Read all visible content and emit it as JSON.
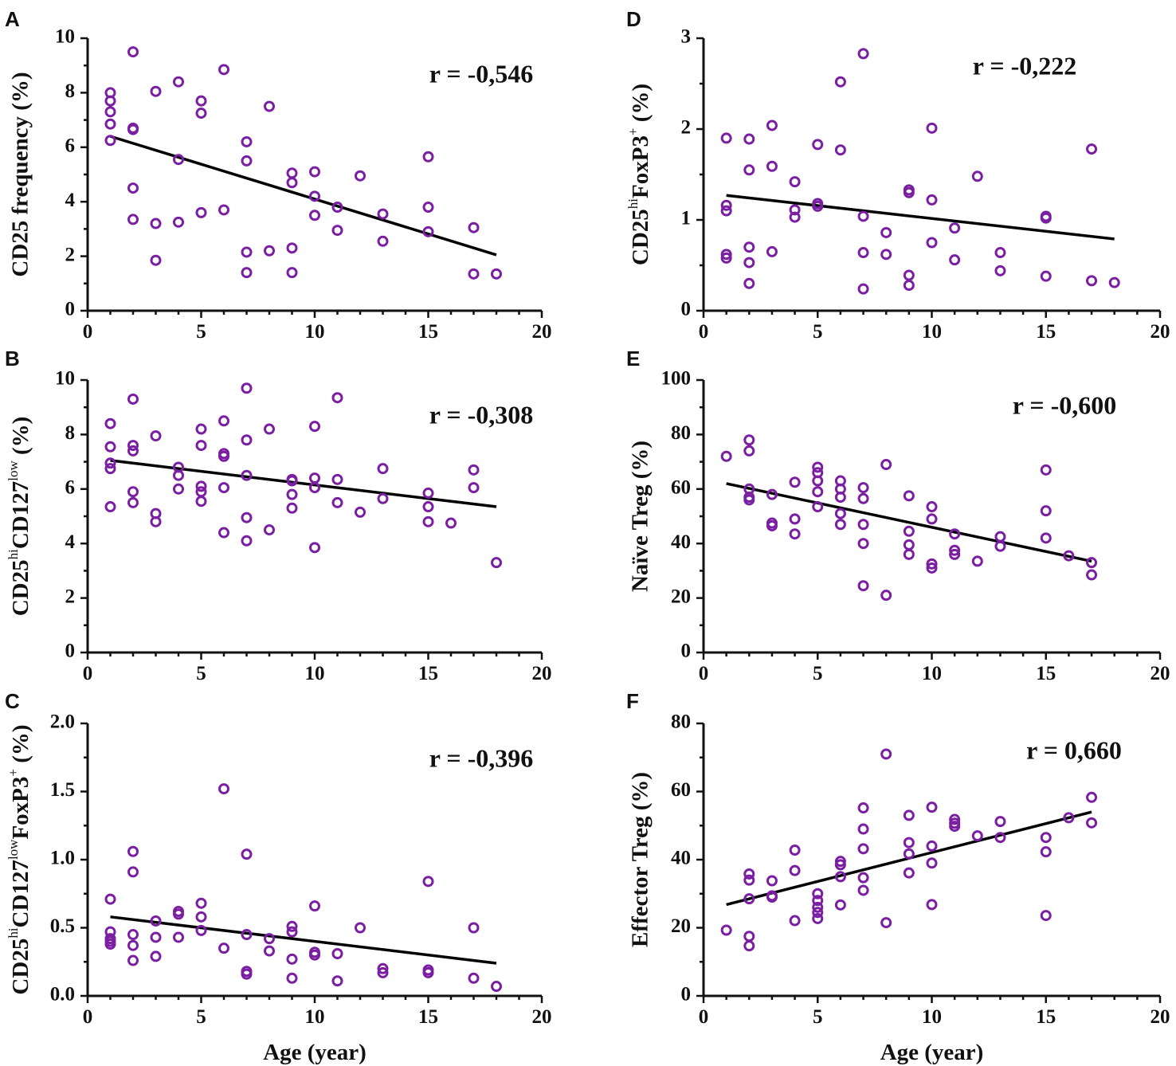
{
  "colors": {
    "points": "#7a1fa2",
    "fit_line": "#000000",
    "axes": "#111111"
  },
  "chart_data": [
    {
      "panel": "A",
      "type": "scatter",
      "ylabel": "CD25 frequency (%)",
      "xlabel": "",
      "r_label": "r = -0,546",
      "xlim": [
        0,
        20
      ],
      "ylim": [
        0,
        10
      ],
      "xticks": [
        0,
        5,
        10,
        15,
        20
      ],
      "xtick_labels": [
        "0",
        "5",
        "10",
        "15",
        "20"
      ],
      "yticks": [
        0,
        2,
        4,
        6,
        8,
        10
      ],
      "ytick_labels": [
        "0",
        "2",
        "4",
        "6",
        "8",
        "10"
      ],
      "fit": [
        [
          1,
          6.4
        ],
        [
          18,
          2.05
        ]
      ],
      "points": [
        [
          1,
          8.0
        ],
        [
          1,
          7.7
        ],
        [
          1,
          7.3
        ],
        [
          1,
          6.85
        ],
        [
          1,
          6.25
        ],
        [
          2,
          9.5
        ],
        [
          2,
          6.7
        ],
        [
          2,
          6.65
        ],
        [
          2,
          4.5
        ],
        [
          2,
          3.35
        ],
        [
          3,
          8.05
        ],
        [
          3,
          3.2
        ],
        [
          3,
          1.85
        ],
        [
          4,
          8.4
        ],
        [
          4,
          5.55
        ],
        [
          4,
          3.25
        ],
        [
          5,
          7.7
        ],
        [
          5,
          7.25
        ],
        [
          5,
          3.6
        ],
        [
          6,
          8.85
        ],
        [
          6,
          3.7
        ],
        [
          7,
          6.2
        ],
        [
          7,
          5.5
        ],
        [
          7,
          2.15
        ],
        [
          7,
          1.4
        ],
        [
          8,
          7.5
        ],
        [
          8,
          2.2
        ],
        [
          9,
          5.05
        ],
        [
          9,
          4.7
        ],
        [
          9,
          2.3
        ],
        [
          9,
          1.4
        ],
        [
          10,
          5.1
        ],
        [
          10,
          4.2
        ],
        [
          10,
          3.5
        ],
        [
          11,
          3.8
        ],
        [
          11,
          2.95
        ],
        [
          12,
          4.95
        ],
        [
          13,
          3.55
        ],
        [
          13,
          2.55
        ],
        [
          15,
          5.65
        ],
        [
          15,
          3.8
        ],
        [
          15,
          2.9
        ],
        [
          17,
          3.05
        ],
        [
          17,
          1.35
        ],
        [
          18,
          1.35
        ]
      ]
    },
    {
      "panel": "B",
      "type": "scatter",
      "ylabel": "CD25hiCD127low (%)",
      "ylabel_parts": [
        "CD25",
        "hi",
        "CD127",
        "low",
        " (%)"
      ],
      "xlabel": "",
      "r_label": "r = -0,308",
      "xlim": [
        0,
        20
      ],
      "ylim": [
        0,
        10
      ],
      "xticks": [
        0,
        5,
        10,
        15,
        20
      ],
      "xtick_labels": [
        "0",
        "5",
        "10",
        "15",
        "20"
      ],
      "yticks": [
        0,
        2,
        4,
        6,
        8,
        10
      ],
      "ytick_labels": [
        "0",
        "2",
        "4",
        "6",
        "8",
        "10"
      ],
      "fit": [
        [
          1,
          7.05
        ],
        [
          18,
          5.35
        ]
      ],
      "points": [
        [
          1,
          8.4
        ],
        [
          1,
          7.55
        ],
        [
          1,
          6.95
        ],
        [
          1,
          6.75
        ],
        [
          1,
          5.35
        ],
        [
          2,
          9.3
        ],
        [
          2,
          7.6
        ],
        [
          2,
          7.4
        ],
        [
          2,
          5.9
        ],
        [
          2,
          5.5
        ],
        [
          3,
          7.95
        ],
        [
          3,
          5.1
        ],
        [
          3,
          4.8
        ],
        [
          4,
          6.8
        ],
        [
          4,
          6.5
        ],
        [
          4,
          6.0
        ],
        [
          5,
          8.2
        ],
        [
          5,
          7.6
        ],
        [
          5,
          6.1
        ],
        [
          5,
          5.9
        ],
        [
          5,
          5.55
        ],
        [
          6,
          8.5
        ],
        [
          6,
          7.3
        ],
        [
          6,
          7.2
        ],
        [
          6,
          6.05
        ],
        [
          6,
          4.4
        ],
        [
          7,
          9.7
        ],
        [
          7,
          7.8
        ],
        [
          7,
          6.5
        ],
        [
          7,
          4.95
        ],
        [
          7,
          4.1
        ],
        [
          8,
          8.2
        ],
        [
          8,
          4.5
        ],
        [
          9,
          6.35
        ],
        [
          9,
          6.3
        ],
        [
          9,
          5.8
        ],
        [
          9,
          5.3
        ],
        [
          10,
          8.3
        ],
        [
          10,
          6.4
        ],
        [
          10,
          6.05
        ],
        [
          10,
          3.85
        ],
        [
          11,
          9.35
        ],
        [
          11,
          6.35
        ],
        [
          11,
          5.5
        ],
        [
          12,
          5.15
        ],
        [
          13,
          6.75
        ],
        [
          13,
          5.65
        ],
        [
          15,
          5.85
        ],
        [
          15,
          5.35
        ],
        [
          15,
          4.8
        ],
        [
          16,
          4.75
        ],
        [
          17,
          6.7
        ],
        [
          17,
          6.05
        ],
        [
          18,
          3.3
        ]
      ]
    },
    {
      "panel": "C",
      "type": "scatter",
      "ylabel": "CD25hiCD127lowFoxP3+ (%)",
      "ylabel_parts": [
        "CD25",
        "hi",
        "CD127",
        "low",
        "FoxP3",
        "+",
        " (%)"
      ],
      "xlabel": "Age (year)",
      "r_label": "r = -0,396",
      "xlim": [
        0,
        20
      ],
      "ylim": [
        0,
        2.0
      ],
      "xticks": [
        0,
        5,
        10,
        15,
        20
      ],
      "xtick_labels": [
        "0",
        "5",
        "10",
        "15",
        "20"
      ],
      "yticks": [
        0,
        0.5,
        1.0,
        1.5,
        2.0
      ],
      "ytick_labels": [
        "0.0",
        "0.5",
        "1.0",
        "1.5",
        "2.0"
      ],
      "fit": [
        [
          1,
          0.58
        ],
        [
          18,
          0.24
        ]
      ],
      "points": [
        [
          1,
          0.71
        ],
        [
          1,
          0.47
        ],
        [
          1,
          0.42
        ],
        [
          1,
          0.4
        ],
        [
          1,
          0.38
        ],
        [
          2,
          1.06
        ],
        [
          2,
          0.91
        ],
        [
          2,
          0.45
        ],
        [
          2,
          0.37
        ],
        [
          2,
          0.26
        ],
        [
          3,
          0.55
        ],
        [
          3,
          0.43
        ],
        [
          3,
          0.29
        ],
        [
          4,
          0.62
        ],
        [
          4,
          0.6
        ],
        [
          4,
          0.43
        ],
        [
          5,
          0.68
        ],
        [
          5,
          0.58
        ],
        [
          5,
          0.48
        ],
        [
          6,
          1.52
        ],
        [
          6,
          0.35
        ],
        [
          7,
          1.04
        ],
        [
          7,
          0.45
        ],
        [
          7,
          0.18
        ],
        [
          7,
          0.16
        ],
        [
          8,
          0.42
        ],
        [
          8,
          0.33
        ],
        [
          9,
          0.51
        ],
        [
          9,
          0.47
        ],
        [
          9,
          0.27
        ],
        [
          9,
          0.13
        ],
        [
          10,
          0.66
        ],
        [
          10,
          0.32
        ],
        [
          10,
          0.3
        ],
        [
          11,
          0.31
        ],
        [
          11,
          0.11
        ],
        [
          12,
          0.5
        ],
        [
          13,
          0.2
        ],
        [
          13,
          0.17
        ],
        [
          15,
          0.84
        ],
        [
          15,
          0.19
        ],
        [
          15,
          0.17
        ],
        [
          17,
          0.5
        ],
        [
          17,
          0.13
        ],
        [
          18,
          0.07
        ]
      ]
    },
    {
      "panel": "D",
      "type": "scatter",
      "ylabel": "CD25hiFoxP3+ (%)",
      "ylabel_parts": [
        "CD25",
        "hi",
        "FoxP3",
        "+",
        " (%)"
      ],
      "xlabel": "",
      "r_label": "r = -0,222",
      "xlim": [
        0,
        20
      ],
      "ylim": [
        0,
        3
      ],
      "xticks": [
        0,
        5,
        10,
        15,
        20
      ],
      "xtick_labels": [
        "0",
        "5",
        "10",
        "15",
        "20"
      ],
      "yticks": [
        0,
        1,
        2,
        3
      ],
      "ytick_labels": [
        "0",
        "1",
        "2",
        "3"
      ],
      "fit": [
        [
          1,
          1.27
        ],
        [
          18,
          0.79
        ]
      ],
      "points": [
        [
          1,
          1.9
        ],
        [
          1,
          1.16
        ],
        [
          1,
          1.1
        ],
        [
          1,
          0.62
        ],
        [
          1,
          0.58
        ],
        [
          2,
          1.89
        ],
        [
          2,
          1.55
        ],
        [
          2,
          0.7
        ],
        [
          2,
          0.53
        ],
        [
          2,
          0.3
        ],
        [
          3,
          2.04
        ],
        [
          3,
          1.59
        ],
        [
          3,
          0.65
        ],
        [
          4,
          1.42
        ],
        [
          4,
          1.11
        ],
        [
          4,
          1.03
        ],
        [
          5,
          1.83
        ],
        [
          5,
          1.18
        ],
        [
          5,
          1.15
        ],
        [
          6,
          2.52
        ],
        [
          6,
          1.77
        ],
        [
          7,
          2.83
        ],
        [
          7,
          1.04
        ],
        [
          7,
          0.64
        ],
        [
          7,
          0.24
        ],
        [
          8,
          0.86
        ],
        [
          8,
          0.62
        ],
        [
          9,
          1.33
        ],
        [
          9,
          1.3
        ],
        [
          9,
          0.39
        ],
        [
          9,
          0.28
        ],
        [
          10,
          2.01
        ],
        [
          10,
          1.22
        ],
        [
          10,
          0.75
        ],
        [
          11,
          0.91
        ],
        [
          11,
          0.56
        ],
        [
          12,
          1.48
        ],
        [
          13,
          0.64
        ],
        [
          13,
          0.44
        ],
        [
          15,
          1.04
        ],
        [
          15,
          1.02
        ],
        [
          15,
          0.38
        ],
        [
          17,
          1.78
        ],
        [
          17,
          0.33
        ],
        [
          18,
          0.31
        ]
      ]
    },
    {
      "panel": "E",
      "type": "scatter",
      "ylabel": "Naïve Treg (%)",
      "xlabel": "",
      "r_label": "r = -0,600",
      "xlim": [
        0,
        20
      ],
      "ylim": [
        0,
        100
      ],
      "xticks": [
        0,
        5,
        10,
        15,
        20
      ],
      "xtick_labels": [
        "0",
        "5",
        "10",
        "15",
        "20"
      ],
      "yticks": [
        0,
        20,
        40,
        60,
        80,
        100
      ],
      "ytick_labels": [
        "0",
        "20",
        "40",
        "60",
        "80",
        "100"
      ],
      "fit": [
        [
          1,
          62
        ],
        [
          17,
          33.5
        ]
      ],
      "points": [
        [
          1,
          72
        ],
        [
          2,
          78
        ],
        [
          2,
          74
        ],
        [
          2,
          60
        ],
        [
          2,
          57
        ],
        [
          2,
          56
        ],
        [
          3,
          58
        ],
        [
          3,
          47.5
        ],
        [
          3,
          46.5
        ],
        [
          4,
          62.5
        ],
        [
          4,
          49
        ],
        [
          4,
          43.5
        ],
        [
          5,
          68
        ],
        [
          5,
          66
        ],
        [
          5,
          63
        ],
        [
          5,
          59
        ],
        [
          5,
          53.5
        ],
        [
          6,
          63
        ],
        [
          6,
          60
        ],
        [
          6,
          57
        ],
        [
          6,
          51
        ],
        [
          6,
          47
        ],
        [
          7,
          60.5
        ],
        [
          7,
          56.5
        ],
        [
          7,
          47
        ],
        [
          7,
          40
        ],
        [
          7,
          24.5
        ],
        [
          8,
          69
        ],
        [
          8,
          21
        ],
        [
          9,
          57.5
        ],
        [
          9,
          44.5
        ],
        [
          9,
          39.5
        ],
        [
          9,
          36
        ],
        [
          10,
          53.5
        ],
        [
          10,
          49
        ],
        [
          10,
          32.5
        ],
        [
          10,
          31
        ],
        [
          11,
          43.5
        ],
        [
          11,
          37.5
        ],
        [
          11,
          36
        ],
        [
          12,
          33.5
        ],
        [
          13,
          42.5
        ],
        [
          13,
          39
        ],
        [
          15,
          67
        ],
        [
          15,
          52
        ],
        [
          15,
          42
        ],
        [
          16,
          35.5
        ],
        [
          17,
          33
        ],
        [
          17,
          28.5
        ]
      ]
    },
    {
      "panel": "F",
      "type": "scatter",
      "ylabel": "Effector Treg (%)",
      "xlabel": "Age (year)",
      "r_label": "r = 0,660",
      "xlim": [
        0,
        20
      ],
      "ylim": [
        0,
        80
      ],
      "xticks": [
        0,
        5,
        10,
        15,
        20
      ],
      "xtick_labels": [
        "0",
        "5",
        "10",
        "15",
        "20"
      ],
      "yticks": [
        0,
        20,
        40,
        60,
        80
      ],
      "ytick_labels": [
        "0",
        "20",
        "40",
        "60",
        "80"
      ],
      "fit": [
        [
          1,
          26.8
        ],
        [
          17,
          54
        ]
      ],
      "points": [
        [
          1,
          19.3
        ],
        [
          2,
          35.8
        ],
        [
          2,
          34
        ],
        [
          2,
          28.5
        ],
        [
          2,
          17.5
        ],
        [
          2,
          14.7
        ],
        [
          3,
          33.8
        ],
        [
          3,
          29.4
        ],
        [
          3,
          29
        ],
        [
          4,
          42.8
        ],
        [
          4,
          36.8
        ],
        [
          4,
          22.1
        ],
        [
          5,
          30
        ],
        [
          5,
          28
        ],
        [
          5,
          26
        ],
        [
          5,
          24.5
        ],
        [
          5,
          22.7
        ],
        [
          6,
          39.5
        ],
        [
          6,
          38.5
        ],
        [
          6,
          35
        ],
        [
          6,
          26.7
        ],
        [
          7,
          55.2
        ],
        [
          7,
          49
        ],
        [
          7,
          43.2
        ],
        [
          7,
          34.7
        ],
        [
          7,
          31
        ],
        [
          8,
          71
        ],
        [
          8,
          21.5
        ],
        [
          9,
          53
        ],
        [
          9,
          45
        ],
        [
          9,
          41.7
        ],
        [
          9,
          36.1
        ],
        [
          10,
          55.4
        ],
        [
          10,
          44
        ],
        [
          10,
          39
        ],
        [
          10,
          26.8
        ],
        [
          11,
          51.8
        ],
        [
          11,
          50.7
        ],
        [
          11,
          49.8
        ],
        [
          12,
          47
        ],
        [
          13,
          51.2
        ],
        [
          13,
          46.5
        ],
        [
          15,
          46.5
        ],
        [
          15,
          42.3
        ],
        [
          15,
          23.6
        ],
        [
          16,
          52.3
        ],
        [
          17,
          58.3
        ],
        [
          17,
          50.8
        ]
      ]
    }
  ]
}
